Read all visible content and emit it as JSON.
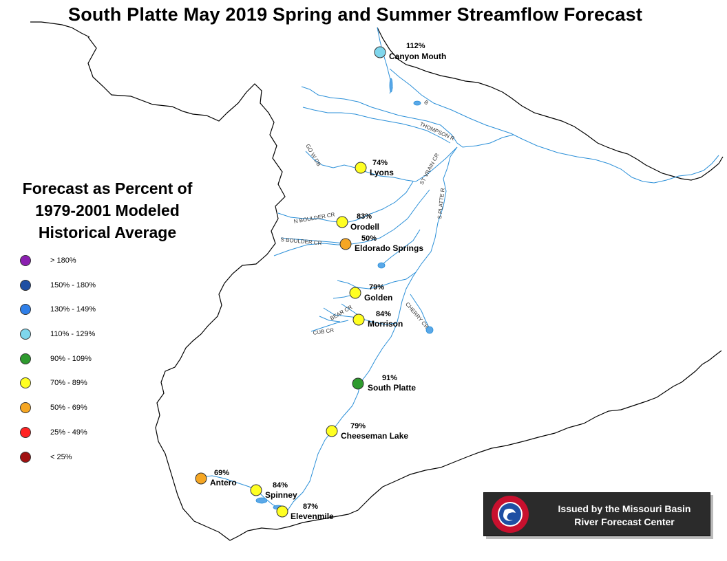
{
  "title": "South Platte May 2019 Spring and Summer Streamflow Forecast",
  "legend": {
    "title_lines": [
      "Forecast as Percent of",
      "1979-2001 Modeled",
      "Historical Average"
    ],
    "items": [
      {
        "label": "> 180%",
        "color": "#8b1fb0"
      },
      {
        "label": "150% - 180%",
        "color": "#1f4fa3"
      },
      {
        "label": "130% - 149%",
        "color": "#2f7fe8"
      },
      {
        "label": "110% - 129%",
        "color": "#7fd6ec"
      },
      {
        "label": "90% - 109%",
        "color": "#2e9a2e"
      },
      {
        "label": "70% - 89%",
        "color": "#ffff22"
      },
      {
        "label": "50% - 69%",
        "color": "#f5a623"
      },
      {
        "label": "25% - 49%",
        "color": "#ff2222"
      },
      {
        "label": "< 25%",
        "color": "#a01010"
      }
    ]
  },
  "stations": [
    {
      "name": "Canyon Mouth",
      "percent": "112%",
      "color": "#7fd6ec"
    },
    {
      "name": "Lyons",
      "percent": "74%",
      "color": "#ffff22"
    },
    {
      "name": "Orodell",
      "percent": "83%",
      "color": "#ffff22"
    },
    {
      "name": "Eldorado Springs",
      "percent": "50%",
      "color": "#f5a623"
    },
    {
      "name": "Golden",
      "percent": "79%",
      "color": "#ffff22"
    },
    {
      "name": "Morrison",
      "percent": "84%",
      "color": "#ffff22"
    },
    {
      "name": "South Platte",
      "percent": "91%",
      "color": "#2e9a2e"
    },
    {
      "name": "Cheeseman Lake",
      "percent": "79%",
      "color": "#ffff22"
    },
    {
      "name": "Antero",
      "percent": "69%",
      "color": "#f5a623"
    },
    {
      "name": "Spinney",
      "percent": "84%",
      "color": "#ffff22"
    },
    {
      "name": "Elevenmile",
      "percent": "87%",
      "color": "#ffff22"
    }
  ],
  "river_labels": [
    "THOMPSON R",
    "ST VRAIN CR",
    "S PLATTE R",
    "N BOULDER CR",
    "S BOULDER CR",
    "BEAR CR",
    "CUB CR",
    "CHERRY CR",
    "B",
    "GO W DB"
  ],
  "issued": {
    "line1": "Issued by the Missouri Basin",
    "line2": "River Forecast Center"
  },
  "colors": {
    "river": "#2a8fd8",
    "boundary": "#000000",
    "water": "#5aa8e8"
  },
  "icons": {
    "logo": "nws-logo-icon"
  }
}
